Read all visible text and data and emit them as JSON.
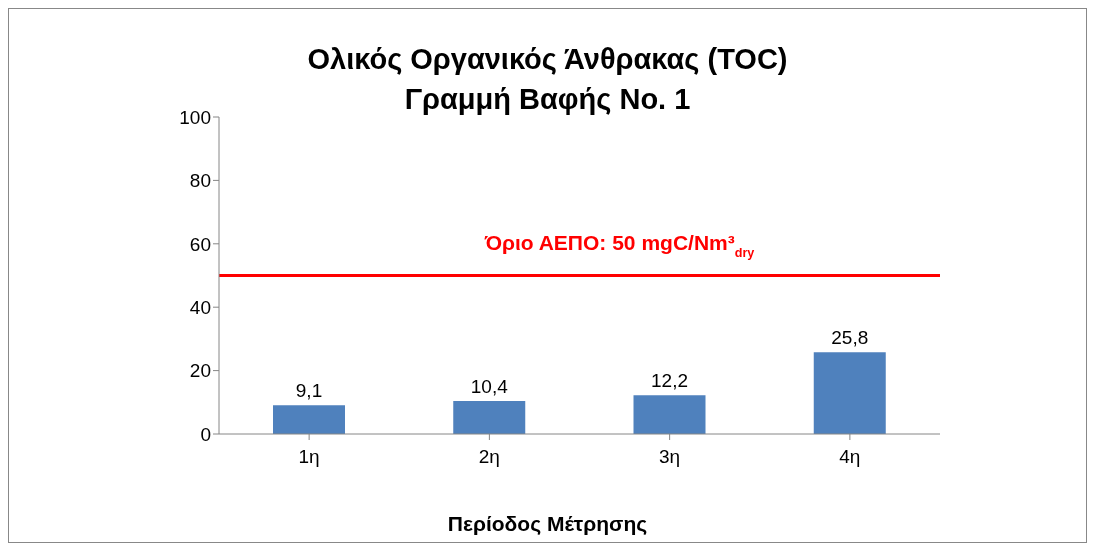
{
  "chart_data": {
    "type": "bar",
    "title": "Ολικός Οργανικός Άνθρακας (TOC)\nΓραμμή Βαφής No. 1",
    "xlabel": "Περίοδος Μέτρησης",
    "categories": [
      "1η",
      "2η",
      "3η",
      "4η"
    ],
    "values": [
      9.1,
      10.4,
      12.2,
      25.8
    ],
    "color": "#4f81bd",
    "value_labels": [
      "9,1",
      "10,4",
      "12,2",
      "25,8"
    ],
    "ylim": [
      0,
      100
    ],
    "yticks": [
      0,
      20,
      40,
      60,
      80,
      100
    ],
    "grid": false,
    "legend": false,
    "ref_lines": [
      {
        "axis": "y",
        "value": 50,
        "label": "Όριο ΑΕΠΟ: 50 mgC/Nm³$_{dry}$",
        "color": "#ff0000"
      }
    ]
  }
}
